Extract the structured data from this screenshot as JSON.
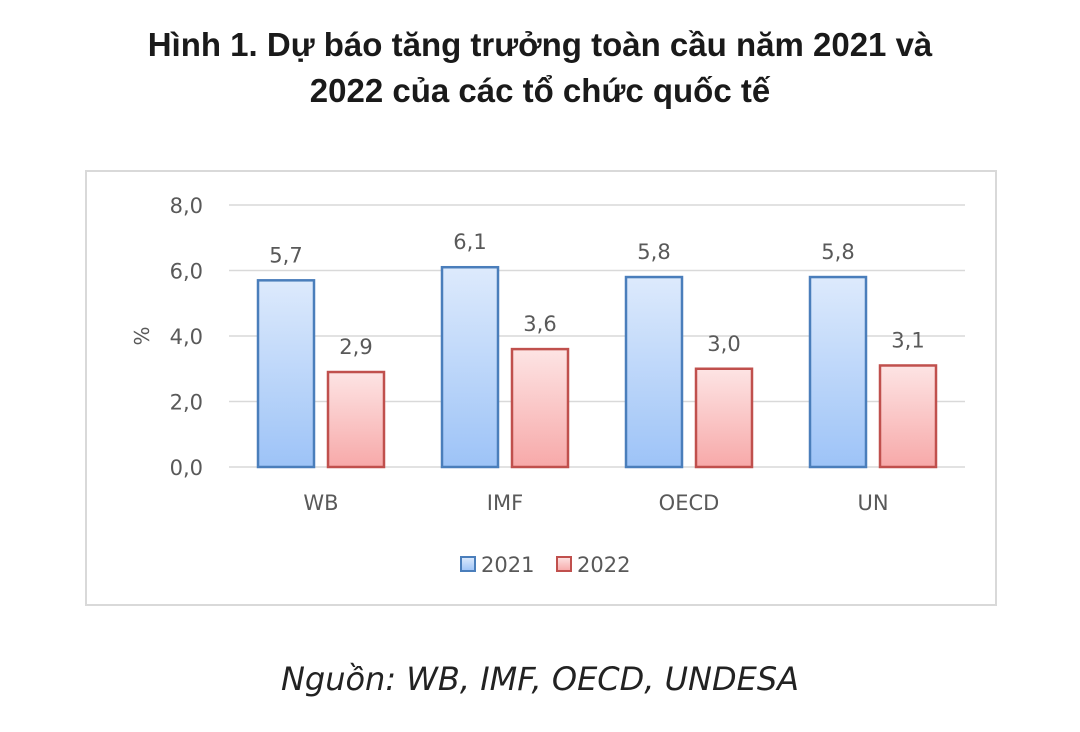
{
  "title_lines": [
    "Hình 1. Dự báo tăng trưởng toàn cầu năm 2021 và",
    "2022 của các tổ chức quốc tế"
  ],
  "source": "Nguồn: WB, IMF, OECD, UNDESA",
  "chart_data": {
    "type": "bar",
    "categories": [
      "WB",
      "IMF",
      "OECD",
      "UN"
    ],
    "series": [
      {
        "name": "2021",
        "values": [
          5.7,
          6.1,
          5.8,
          5.8
        ],
        "labels": [
          "5,7",
          "6,1",
          "5,8",
          "5,8"
        ],
        "color": "#9dc3f7",
        "border": "#4a7ebb"
      },
      {
        "name": "2022",
        "values": [
          2.9,
          3.6,
          3.0,
          3.1
        ],
        "labels": [
          "2,9",
          "3,6",
          "3,0",
          "3,1"
        ],
        "color": "#f7b6b6",
        "border": "#c0504d"
      }
    ],
    "ylabel": "%",
    "ylim": [
      0,
      8
    ],
    "yticks": [
      0,
      2,
      4,
      6,
      8
    ],
    "ytick_labels": [
      "0,0",
      "2,0",
      "4,0",
      "6,0",
      "8,0"
    ],
    "grid": true,
    "legend_position": "bottom"
  }
}
